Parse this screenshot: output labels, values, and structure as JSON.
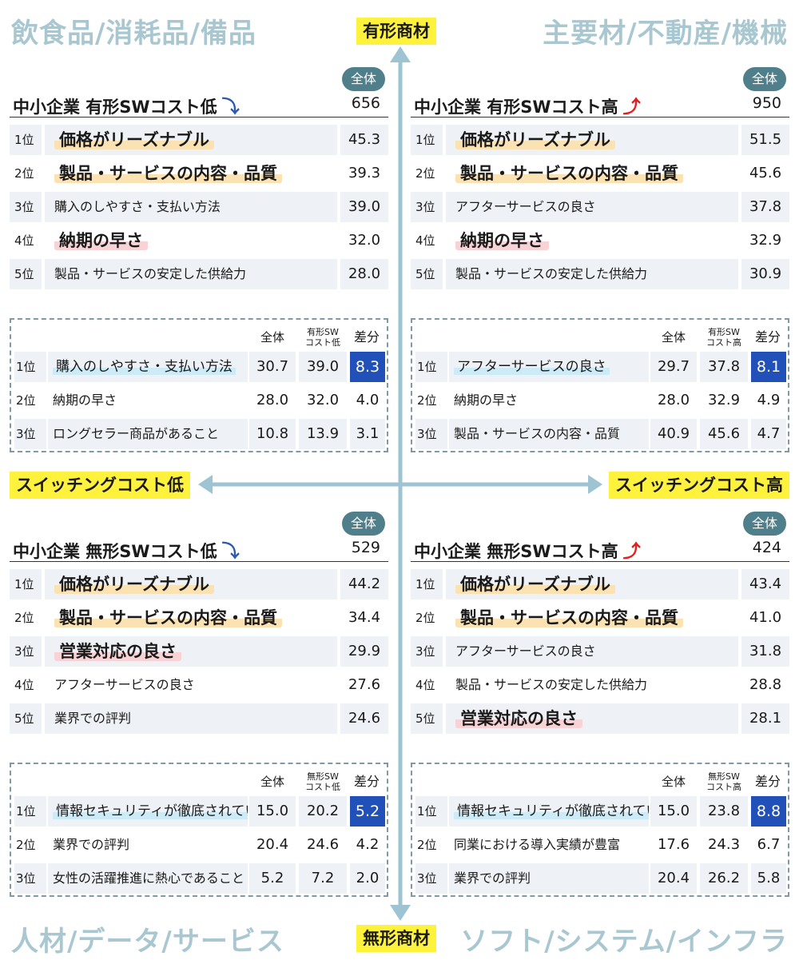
{
  "corners": {
    "top_left": "飲食品/消耗品/備品",
    "top_right": "主要材/不動産/機械",
    "bottom_left": "人材/データ/サービス",
    "bottom_right": "ソフト/システム/インフラ"
  },
  "axes": {
    "top": "有形商材",
    "bottom": "無形商材",
    "left": "スイッチングコスト低",
    "right": "スイッチングコスト高"
  },
  "colors": {
    "axis": "#9ec3d3",
    "tag_bg": "#fff23c",
    "badge": "#4f7f8b",
    "diff_highlight": "#2150b8",
    "corner_text": "#a9c7d0"
  },
  "quadrants": [
    {
      "badge": "全体",
      "title": "中小企業 有形SWコスト低",
      "arrow_icon": "down-arrow-icon",
      "count": "656",
      "ranks": [
        {
          "rank": "1位",
          "label": "価格がリーズナブル",
          "value": "45.3",
          "hl": "y"
        },
        {
          "rank": "2位",
          "label": "製品・サービスの内容・品質",
          "value": "39.3",
          "hl": "y"
        },
        {
          "rank": "3位",
          "label": "購入のしやすさ・支払い方法",
          "value": "39.0",
          "hl": ""
        },
        {
          "rank": "4位",
          "label": "納期の早さ",
          "value": "32.0",
          "hl": "p"
        },
        {
          "rank": "5位",
          "label": "製品・サービスの安定した供給力",
          "value": "28.0",
          "hl": ""
        }
      ],
      "diff_header": {
        "all": "全体",
        "sw_line1": "有形SW",
        "sw_line2": "コスト低",
        "diff": "差分"
      },
      "diffs": [
        {
          "rank": "1位",
          "label": "購入のしやすさ・支払い方法",
          "all": "30.7",
          "sw": "39.0",
          "diff": "8.3"
        },
        {
          "rank": "2位",
          "label": "納期の早さ",
          "all": "28.0",
          "sw": "32.0",
          "diff": "4.0"
        },
        {
          "rank": "3位",
          "label": "ロングセラー商品があること",
          "all": "10.8",
          "sw": "13.9",
          "diff": "3.1"
        }
      ]
    },
    {
      "badge": "全体",
      "title": "中小企業 有形SWコスト高",
      "arrow_icon": "up-arrow-icon",
      "count": "950",
      "ranks": [
        {
          "rank": "1位",
          "label": "価格がリーズナブル",
          "value": "51.5",
          "hl": "y"
        },
        {
          "rank": "2位",
          "label": "製品・サービスの内容・品質",
          "value": "45.6",
          "hl": "y"
        },
        {
          "rank": "3位",
          "label": "アフターサービスの良さ",
          "value": "37.8",
          "hl": ""
        },
        {
          "rank": "4位",
          "label": "納期の早さ",
          "value": "32.9",
          "hl": "p"
        },
        {
          "rank": "5位",
          "label": "製品・サービスの安定した供給力",
          "value": "30.9",
          "hl": ""
        }
      ],
      "diff_header": {
        "all": "全体",
        "sw_line1": "有形SW",
        "sw_line2": "コスト高",
        "diff": "差分"
      },
      "diffs": [
        {
          "rank": "1位",
          "label": "アフターサービスの良さ",
          "all": "29.7",
          "sw": "37.8",
          "diff": "8.1"
        },
        {
          "rank": "2位",
          "label": "納期の早さ",
          "all": "28.0",
          "sw": "32.9",
          "diff": "4.9"
        },
        {
          "rank": "3位",
          "label": "製品・サービスの内容・品質",
          "all": "40.9",
          "sw": "45.6",
          "diff": "4.7"
        }
      ]
    },
    {
      "badge": "全体",
      "title": "中小企業 無形SWコスト低",
      "arrow_icon": "down-arrow-icon",
      "count": "529",
      "ranks": [
        {
          "rank": "1位",
          "label": "価格がリーズナブル",
          "value": "44.2",
          "hl": "y"
        },
        {
          "rank": "2位",
          "label": "製品・サービスの内容・品質",
          "value": "34.4",
          "hl": "y"
        },
        {
          "rank": "3位",
          "label": "営業対応の良さ",
          "value": "29.9",
          "hl": "p"
        },
        {
          "rank": "4位",
          "label": "アフターサービスの良さ",
          "value": "27.6",
          "hl": ""
        },
        {
          "rank": "5位",
          "label": "業界での評判",
          "value": "24.6",
          "hl": ""
        }
      ],
      "diff_header": {
        "all": "全体",
        "sw_line1": "無形SW",
        "sw_line2": "コスト低",
        "diff": "差分"
      },
      "diffs": [
        {
          "rank": "1位",
          "label": "情報セキュリティが徹底されていること",
          "all": "15.0",
          "sw": "20.2",
          "diff": "5.2"
        },
        {
          "rank": "2位",
          "label": "業界での評判",
          "all": "20.4",
          "sw": "24.6",
          "diff": "4.2"
        },
        {
          "rank": "3位",
          "label": "女性の活躍推進に熱心であること",
          "all": "5.2",
          "sw": "7.2",
          "diff": "2.0"
        }
      ]
    },
    {
      "badge": "全体",
      "title": "中小企業 無形SWコスト高",
      "arrow_icon": "up-arrow-icon",
      "count": "424",
      "ranks": [
        {
          "rank": "1位",
          "label": "価格がリーズナブル",
          "value": "43.4",
          "hl": "y"
        },
        {
          "rank": "2位",
          "label": "製品・サービスの内容・品質",
          "value": "41.0",
          "hl": "y"
        },
        {
          "rank": "3位",
          "label": "アフターサービスの良さ",
          "value": "31.8",
          "hl": ""
        },
        {
          "rank": "4位",
          "label": "製品・サービスの安定した供給力",
          "value": "28.8",
          "hl": ""
        },
        {
          "rank": "5位",
          "label": "営業対応の良さ",
          "value": "28.1",
          "hl": "p"
        }
      ],
      "diff_header": {
        "all": "全体",
        "sw_line1": "無形SW",
        "sw_line2": "コスト高",
        "diff": "差分"
      },
      "diffs": [
        {
          "rank": "1位",
          "label": "情報セキュリティが徹底されていること",
          "all": "15.0",
          "sw": "23.8",
          "diff": "8.8"
        },
        {
          "rank": "2位",
          "label": "同業における導入実績が豊富",
          "all": "17.6",
          "sw": "24.3",
          "diff": "6.7"
        },
        {
          "rank": "3位",
          "label": "業界での評判",
          "all": "20.4",
          "sw": "26.2",
          "diff": "5.8"
        }
      ]
    }
  ]
}
